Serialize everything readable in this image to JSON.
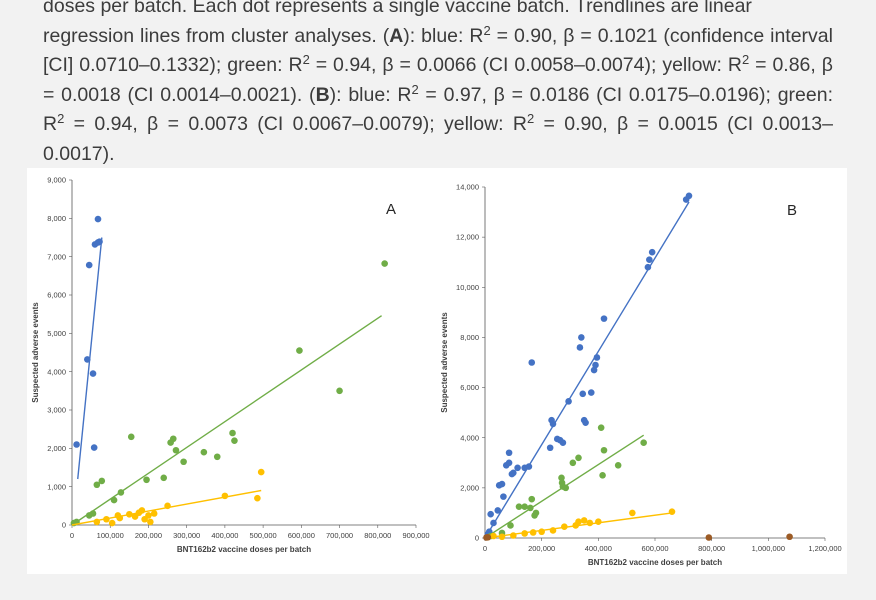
{
  "caption": {
    "line1": "doses per batch. Each dot represents a single vaccine batch. Trendlines are linear",
    "line2": "regression lines from cluster analyses.",
    "panelA": "A",
    "textA": "blue: R",
    "a_blue_rest": " = 0.90, β = 0.1021 (confidence interval [CI] 0.0710–0.1332); green: R",
    "a_green_rest": " = 0.94, β = 0.0066 (CI 0.0058–0.0074); yellow: R",
    "a_yellow_rest": " = 0.86, β = 0.0018 (CI 0.0014–0.0021).",
    "panelB": "B",
    "b_blue_rest": " = 0.97, β = 0.0186 (CI 0.0175–0.0196); green: R",
    "b_green_rest": " = 0.94, β = 0.0073 (CI 0.0067–0.0079); yellow: R",
    "b_yellow_rest": " = 0.90, β = 0.0015 (CI 0.0013–0.0017).",
    "sup": "2"
  },
  "chart_data": [
    {
      "type": "scatter",
      "panel_label": "A",
      "xlabel": "BNT162b2 vaccine doses per batch",
      "ylabel": "Suspected adverse events",
      "xlim": [
        0,
        900000
      ],
      "ylim": [
        0,
        9000
      ],
      "x_ticks": [
        0,
        100000,
        200000,
        300000,
        400000,
        500000,
        600000,
        700000,
        800000,
        900000
      ],
      "x_tick_labels": [
        "0",
        "100,000",
        "200,000",
        "300,000",
        "400,000",
        "500,000",
        "600,000",
        "700,000",
        "800,000",
        "900,000"
      ],
      "y_ticks": [
        0,
        1000,
        2000,
        3000,
        4000,
        5000,
        6000,
        7000,
        8000,
        9000
      ],
      "y_tick_labels": [
        "0",
        "1,000",
        "2,000",
        "3,000",
        "4,000",
        "5,000",
        "6,000",
        "7,000",
        "8,000",
        "9,000"
      ],
      "grid": false,
      "series": [
        {
          "color": "#4472c4",
          "points": [
            [
              12000,
              2100
            ],
            [
              40000,
              4320
            ],
            [
              45000,
              6780
            ],
            [
              55000,
              3950
            ],
            [
              58000,
              2020
            ],
            [
              60000,
              7320
            ],
            [
              68000,
              7370
            ],
            [
              68000,
              7980
            ],
            [
              72000,
              7390
            ]
          ],
          "trendline": [
            [
              15000,
              1200
            ],
            [
              78000,
              7500
            ]
          ]
        },
        {
          "color": "#70ad47",
          "points": [
            [
              5000,
              50
            ],
            [
              12000,
              80
            ],
            [
              45000,
              250
            ],
            [
              55000,
              300
            ],
            [
              65000,
              1050
            ],
            [
              78000,
              1150
            ],
            [
              110000,
              650
            ],
            [
              128000,
              850
            ],
            [
              155000,
              2300
            ],
            [
              195000,
              1180
            ],
            [
              240000,
              1230
            ],
            [
              258000,
              2150
            ],
            [
              265000,
              2250
            ],
            [
              272000,
              1950
            ],
            [
              292000,
              1650
            ],
            [
              345000,
              1900
            ],
            [
              380000,
              1780
            ],
            [
              420000,
              2400
            ],
            [
              425000,
              2200
            ],
            [
              595000,
              4550
            ],
            [
              700000,
              3500
            ],
            [
              818000,
              6820
            ]
          ],
          "trendline": [
            [
              0,
              0
            ],
            [
              810000,
              5460
            ]
          ]
        },
        {
          "color": "#ffc000",
          "points": [
            [
              65000,
              80
            ],
            [
              90000,
              150
            ],
            [
              105000,
              50
            ],
            [
              120000,
              250
            ],
            [
              125000,
              180
            ],
            [
              150000,
              280
            ],
            [
              165000,
              220
            ],
            [
              175000,
              320
            ],
            [
              183000,
              380
            ],
            [
              190000,
              150
            ],
            [
              200000,
              250
            ],
            [
              205000,
              80
            ],
            [
              215000,
              300
            ],
            [
              250000,
              500
            ],
            [
              400000,
              760
            ],
            [
              485000,
              700
            ],
            [
              495000,
              1380
            ]
          ],
          "trendline": [
            [
              0,
              0
            ],
            [
              495000,
              900
            ]
          ]
        }
      ]
    },
    {
      "type": "scatter",
      "panel_label": "B",
      "xlabel": "BNT162b2 vaccine doses per batch",
      "ylabel": "Suspected adverse events",
      "xlim": [
        0,
        1200000
      ],
      "ylim": [
        0,
        14000
      ],
      "x_ticks": [
        0,
        200000,
        400000,
        600000,
        800000,
        1000000,
        1200000
      ],
      "x_tick_labels": [
        "0",
        "200,000",
        "400,000",
        "600,000",
        "800,000",
        "1,000,000",
        "1,200,000"
      ],
      "y_ticks": [
        0,
        2000,
        4000,
        6000,
        8000,
        10000,
        12000,
        14000
      ],
      "y_tick_labels": [
        "0",
        "2,000",
        "4,000",
        "6,000",
        "8,000",
        "10,000",
        "12,000",
        "14,000"
      ],
      "grid": false,
      "series": [
        {
          "color": "#4472c4",
          "points": [
            [
              10000,
              150
            ],
            [
              15000,
              250
            ],
            [
              20000,
              950
            ],
            [
              30000,
              600
            ],
            [
              45000,
              1100
            ],
            [
              50000,
              2100
            ],
            [
              60000,
              2150
            ],
            [
              65000,
              1650
            ],
            [
              75000,
              2900
            ],
            [
              85000,
              3000
            ],
            [
              85000,
              3400
            ],
            [
              95000,
              2550
            ],
            [
              100000,
              2600
            ],
            [
              115000,
              2800
            ],
            [
              140000,
              2800
            ],
            [
              155000,
              2850
            ],
            [
              165000,
              7000
            ],
            [
              230000,
              3600
            ],
            [
              235000,
              4700
            ],
            [
              240000,
              4550
            ],
            [
              255000,
              3950
            ],
            [
              265000,
              3900
            ],
            [
              275000,
              3800
            ],
            [
              295000,
              5450
            ],
            [
              335000,
              7600
            ],
            [
              340000,
              8000
            ],
            [
              345000,
              5750
            ],
            [
              350000,
              4700
            ],
            [
              355000,
              4600
            ],
            [
              375000,
              5800
            ],
            [
              385000,
              6700
            ],
            [
              390000,
              6900
            ],
            [
              395000,
              7200
            ],
            [
              420000,
              8750
            ],
            [
              575000,
              10800
            ],
            [
              580000,
              11100
            ],
            [
              590000,
              11400
            ],
            [
              710000,
              13500
            ],
            [
              720000,
              13650
            ]
          ],
          "trendline": [
            [
              0,
              0
            ],
            [
              720000,
              13400
            ]
          ]
        },
        {
          "color": "#70ad47",
          "points": [
            [
              20000,
              80
            ],
            [
              60000,
              200
            ],
            [
              90000,
              500
            ],
            [
              120000,
              1250
            ],
            [
              140000,
              1250
            ],
            [
              160000,
              1200
            ],
            [
              165000,
              1550
            ],
            [
              175000,
              900
            ],
            [
              180000,
              1000
            ],
            [
              270000,
              2400
            ],
            [
              272000,
              2200
            ],
            [
              275000,
              2050
            ],
            [
              285000,
              2000
            ],
            [
              310000,
              3000
            ],
            [
              330000,
              3200
            ],
            [
              410000,
              4400
            ],
            [
              415000,
              2500
            ],
            [
              420000,
              3500
            ],
            [
              470000,
              2900
            ],
            [
              560000,
              3800
            ]
          ],
          "trendline": [
            [
              0,
              0
            ],
            [
              560000,
              4100
            ]
          ]
        },
        {
          "color": "#ffc000",
          "points": [
            [
              10000,
              30
            ],
            [
              30000,
              80
            ],
            [
              60000,
              50
            ],
            [
              100000,
              100
            ],
            [
              140000,
              180
            ],
            [
              170000,
              220
            ],
            [
              200000,
              250
            ],
            [
              240000,
              300
            ],
            [
              280000,
              450
            ],
            [
              320000,
              500
            ],
            [
              330000,
              650
            ],
            [
              350000,
              700
            ],
            [
              370000,
              600
            ],
            [
              400000,
              650
            ],
            [
              520000,
              1000
            ],
            [
              660000,
              1050
            ]
          ],
          "trendline": [
            [
              0,
              0
            ],
            [
              660000,
              1000
            ]
          ]
        },
        {
          "color": "#9c5b25",
          "points": [
            [
              5000,
              20
            ],
            [
              10000,
              30
            ],
            [
              790000,
              20
            ],
            [
              1075000,
              50
            ]
          ]
        }
      ]
    }
  ]
}
